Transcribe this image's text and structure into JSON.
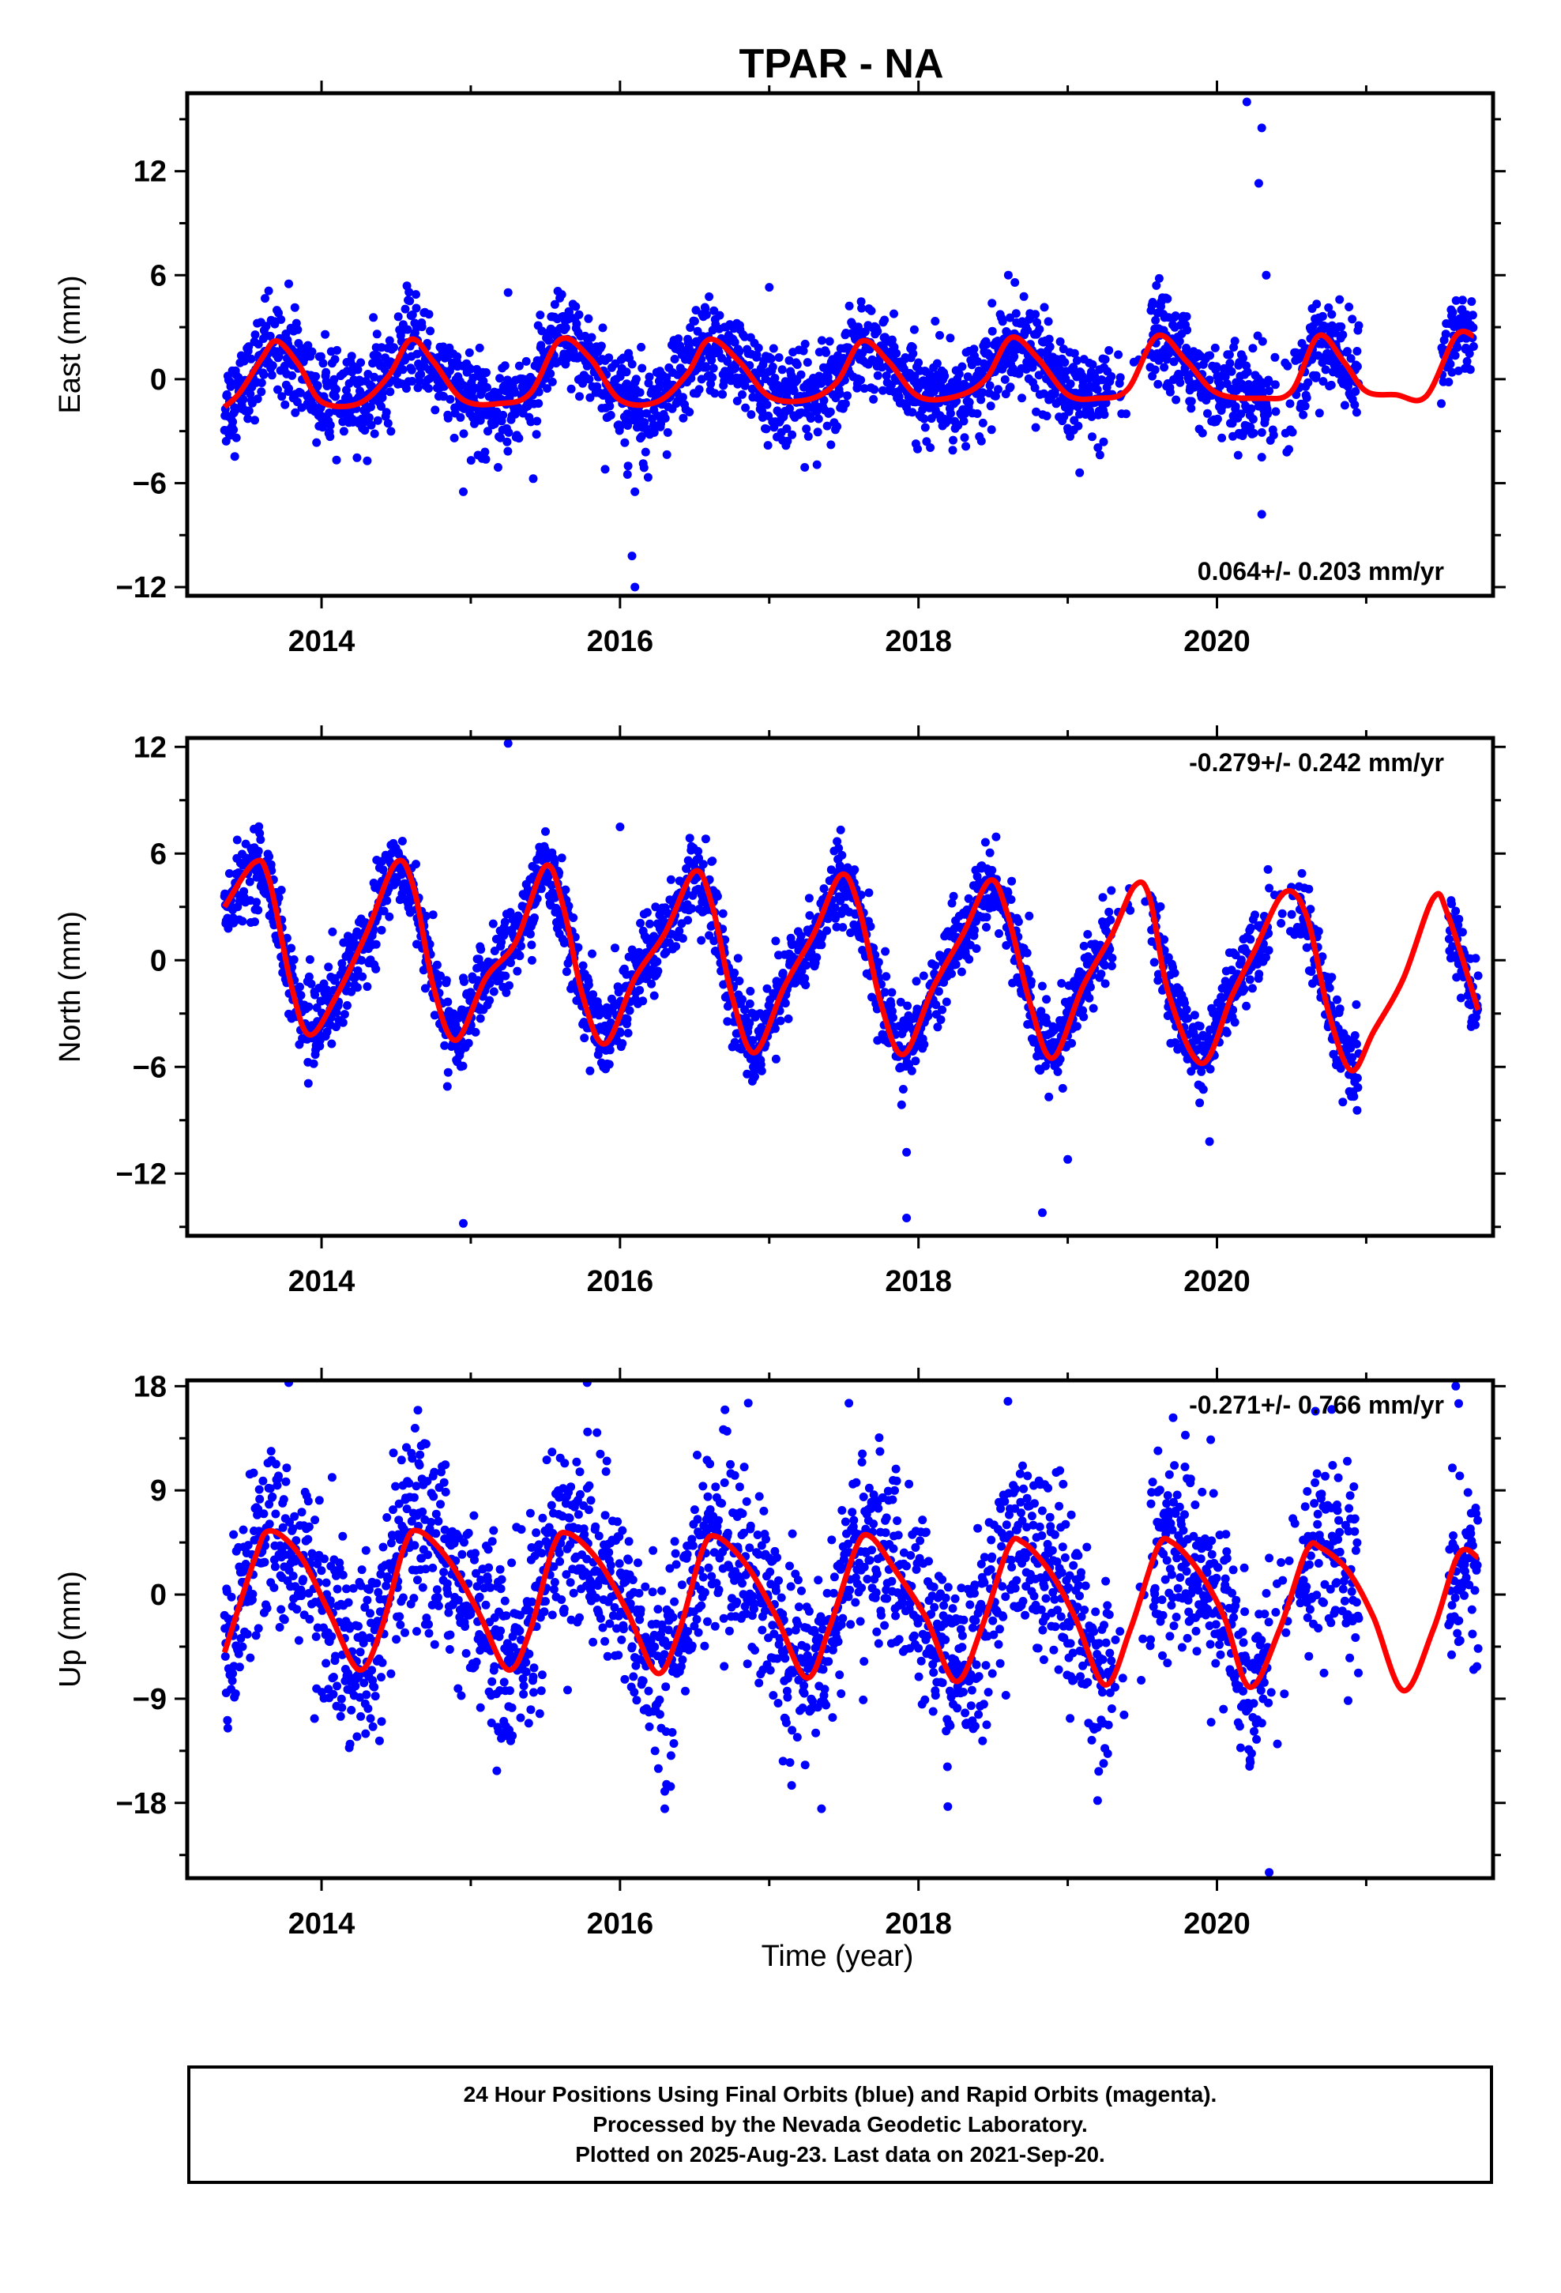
{
  "title": "TPAR - NA",
  "xlabel": "Time (year)",
  "caption": {
    "line1": "24 Hour Positions Using Final Orbits (blue) and Rapid Orbits (magenta).",
    "line2": "Processed by the Nevada Geodetic Laboratory.",
    "line3": "Plotted on 2025-Aug-23. Last data on 2021-Sep-20."
  },
  "colors": {
    "final_orbits": "#0000ff",
    "model_fit": "#ff0000",
    "axes": "#000000"
  },
  "chart_data": [
    {
      "type": "scatter",
      "name": "east",
      "ylabel": "East (mm)",
      "xlim": [
        2013.1,
        2021.85
      ],
      "ylim": [
        -12.5,
        16.5
      ],
      "yticks": [
        -12,
        -6,
        0,
        6,
        12
      ],
      "xticks": [
        2014,
        2016,
        2018,
        2020
      ],
      "rate_label": "0.064+/- 0.203 mm/yr",
      "rate_position": "bottom-right",
      "grid": false,
      "model": {
        "period_years": 1.0,
        "x": [
          2013.35,
          2013.45,
          2013.6,
          2013.7,
          2013.85,
          2014.0,
          2014.25,
          2014.45,
          2014.6,
          2014.75,
          2014.95,
          2015.2,
          2015.4,
          2015.6,
          2015.8,
          2016.0,
          2016.25,
          2016.45,
          2016.6,
          2016.8,
          2017.0,
          2017.25,
          2017.45,
          2017.62,
          2017.8,
          2018.0,
          2018.25,
          2018.45,
          2018.62,
          2018.8,
          2019.0,
          2019.2,
          2019.4,
          2019.6,
          2019.8,
          2020.0,
          2020.3,
          2020.5,
          2020.68,
          2020.85,
          2021.0,
          2021.2,
          2021.4,
          2021.6,
          2021.72
        ],
        "y": [
          -1.6,
          -0.8,
          1.2,
          2.2,
          0.8,
          -1.3,
          -1.4,
          0.2,
          2.3,
          1.0,
          -1.2,
          -1.4,
          -0.8,
          2.3,
          1.2,
          -1.2,
          -1.3,
          0.3,
          2.3,
          1.0,
          -1.0,
          -1.2,
          -0.2,
          2.2,
          1.0,
          -1.0,
          -1.0,
          0.0,
          2.4,
          1.2,
          -0.9,
          -1.1,
          -0.6,
          2.5,
          1.0,
          -0.8,
          -1.1,
          -0.7,
          2.5,
          1.0,
          -0.7,
          -0.9,
          -1.0,
          2.5,
          2.5
        ]
      },
      "outliers": [
        [
          2013.78,
          5.5
        ],
        [
          2015.25,
          5.0
        ],
        [
          2017.0,
          5.3
        ],
        [
          2014.95,
          -6.5
        ],
        [
          2015.9,
          -5.2
        ],
        [
          2016.05,
          -5.5
        ],
        [
          2016.1,
          -6.5
        ],
        [
          2016.08,
          -10.2
        ],
        [
          2016.1,
          -12.0
        ],
        [
          2019.08,
          -5.4
        ],
        [
          2020.2,
          16.0
        ],
        [
          2020.3,
          14.5
        ],
        [
          2020.28,
          11.3
        ],
        [
          2020.33,
          6.0
        ],
        [
          2020.3,
          -4.5
        ],
        [
          2020.3,
          -7.8
        ]
      ],
      "gaps": [
        [
          2020.95,
          2021.5
        ]
      ],
      "scatter_sd": 1.3
    },
    {
      "type": "scatter",
      "name": "north",
      "ylabel": "North (mm)",
      "xlim": [
        2013.1,
        2021.85
      ],
      "ylim": [
        -15.5,
        12.5
      ],
      "yticks": [
        -12,
        -6,
        0,
        6,
        12
      ],
      "xticks": [
        2014,
        2016,
        2018,
        2020
      ],
      "rate_label": "-0.279+/- 0.242 mm/yr",
      "rate_position": "top-right",
      "grid": false,
      "model": {
        "period_years": 1.0,
        "x": [
          2013.35,
          2013.55,
          2013.65,
          2013.8,
          2013.92,
          2014.1,
          2014.3,
          2014.5,
          2014.62,
          2014.75,
          2014.9,
          2015.1,
          2015.3,
          2015.5,
          2015.62,
          2015.75,
          2015.9,
          2016.1,
          2016.3,
          2016.5,
          2016.62,
          2016.75,
          2016.9,
          2017.1,
          2017.3,
          2017.48,
          2017.6,
          2017.75,
          2017.9,
          2018.1,
          2018.3,
          2018.48,
          2018.6,
          2018.75,
          2018.9,
          2019.1,
          2019.3,
          2019.45,
          2019.55,
          2019.68,
          2019.9,
          2020.1,
          2020.25,
          2020.45,
          2020.6,
          2020.75,
          2020.9,
          2021.05,
          2021.25,
          2021.45,
          2021.55,
          2021.75
        ],
        "y": [
          3.0,
          5.5,
          4.5,
          -1.5,
          -4.2,
          -2.0,
          1.5,
          5.5,
          4.0,
          -1.5,
          -4.5,
          -1.0,
          1.0,
          5.3,
          3.0,
          -2.0,
          -4.7,
          -1.0,
          1.5,
          5.0,
          3.0,
          -2.0,
          -5.2,
          -1.5,
          1.5,
          4.8,
          3.0,
          -2.5,
          -5.3,
          -1.5,
          1.5,
          4.5,
          2.5,
          -2.5,
          -5.5,
          -1.5,
          1.5,
          4.2,
          3.5,
          -2.0,
          -5.8,
          -2.0,
          0.5,
          3.8,
          2.5,
          -3.0,
          -6.2,
          -4.0,
          -1.0,
          3.5,
          2.5,
          -2.8
        ]
      },
      "outliers": [
        [
          2015.25,
          12.2
        ],
        [
          2016.0,
          7.5
        ],
        [
          2014.95,
          -14.8
        ],
        [
          2017.92,
          -14.5
        ],
        [
          2017.92,
          -10.8
        ],
        [
          2018.83,
          -14.2
        ],
        [
          2019.0,
          -11.2
        ],
        [
          2019.95,
          -10.2
        ]
      ],
      "gaps": [
        [
          2020.95,
          2021.55
        ]
      ],
      "scatter_sd": 1.1
    },
    {
      "type": "scatter",
      "name": "up",
      "ylabel": "Up (mm)",
      "xlim": [
        2013.1,
        2021.85
      ],
      "ylim": [
        -24.5,
        18.5
      ],
      "yticks": [
        -18,
        -9,
        0,
        9,
        18
      ],
      "xticks": [
        2014,
        2016,
        2018,
        2020
      ],
      "rate_label": "-0.271+/- 0.766 mm/yr",
      "rate_position": "top-right",
      "grid": false,
      "model": {
        "period_years": 1.0,
        "x": [
          2013.35,
          2013.55,
          2013.65,
          2013.85,
          2014.05,
          2014.25,
          2014.4,
          2014.55,
          2014.65,
          2014.85,
          2015.05,
          2015.25,
          2015.4,
          2015.55,
          2015.65,
          2015.85,
          2016.05,
          2016.25,
          2016.4,
          2016.55,
          2016.65,
          2016.85,
          2017.05,
          2017.25,
          2017.4,
          2017.58,
          2017.68,
          2017.85,
          2018.05,
          2018.25,
          2018.42,
          2018.6,
          2018.7,
          2018.88,
          2019.05,
          2019.25,
          2019.42,
          2019.6,
          2019.7,
          2019.88,
          2020.05,
          2020.22,
          2020.42,
          2020.6,
          2020.7,
          2020.88,
          2021.05,
          2021.25,
          2021.45,
          2021.62,
          2021.75
        ],
        "y": [
          -5.0,
          3.0,
          5.5,
          3.5,
          -1.5,
          -6.5,
          -3.0,
          4.0,
          5.5,
          3.0,
          -1.5,
          -6.5,
          -3.0,
          4.0,
          5.3,
          3.0,
          -1.5,
          -6.8,
          -3.0,
          3.8,
          5.0,
          2.5,
          -2.0,
          -7.2,
          -3.0,
          4.0,
          5.0,
          2.0,
          -2.0,
          -7.5,
          -3.0,
          4.0,
          4.5,
          2.0,
          -2.0,
          -7.8,
          -3.0,
          4.0,
          4.5,
          2.0,
          -2.0,
          -8.0,
          -3.0,
          3.8,
          4.0,
          2.0,
          -2.0,
          -8.3,
          -3.0,
          3.5,
          3.2
        ]
      },
      "outliers": [
        [
          2013.78,
          18.3
        ],
        [
          2015.78,
          18.3
        ],
        [
          2016.3,
          -18.5
        ],
        [
          2016.3,
          -17.0
        ],
        [
          2017.35,
          -18.5
        ],
        [
          2019.2,
          -17.8
        ],
        [
          2020.35,
          -24.0
        ],
        [
          2021.6,
          18.0
        ],
        [
          2021.62,
          16.5
        ]
      ],
      "gaps": [
        [
          2020.95,
          2021.55
        ]
      ],
      "scatter_sd": 4.0
    }
  ]
}
